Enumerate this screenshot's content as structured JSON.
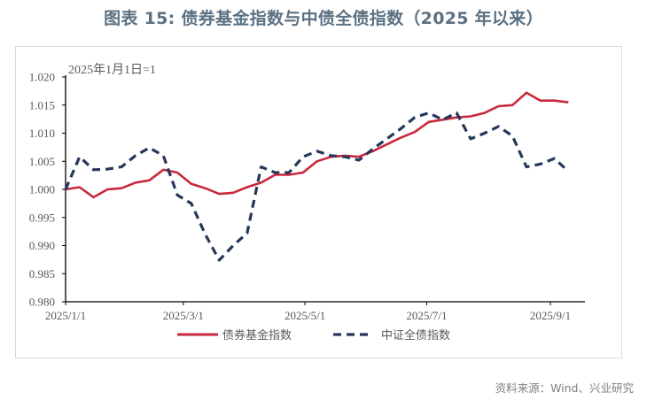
{
  "title": "图表 15: 债券基金指数与中债全债指数（2025 年以来）",
  "source": "资料来源：Wind、兴业研究",
  "chart_data": {
    "type": "line",
    "title": "图表 15: 债券基金指数与中债全债指数（2025 年以来）",
    "annotation": "2025年1月1日=1",
    "xlabel": "",
    "ylabel": "",
    "ylim": [
      0.98,
      1.02
    ],
    "yticks": [
      "1.020",
      "1.015",
      "1.010",
      "1.005",
      "1.000",
      "0.995",
      "0.990",
      "0.985",
      "0.980"
    ],
    "xticks": [
      "2025/1/1",
      "2025/3/1",
      "2025/5/1",
      "2025/7/1",
      "2025/9/1"
    ],
    "grid": false,
    "legend_position": "bottom",
    "colors": {
      "bond_fund": "#c8283e",
      "chinabond": "#25385a"
    },
    "x": [
      "2025/1/1",
      "2025/1/8",
      "2025/1/15",
      "2025/1/22",
      "2025/1/29",
      "2025/2/5",
      "2025/2/12",
      "2025/2/19",
      "2025/2/26",
      "2025/3/5",
      "2025/3/12",
      "2025/3/19",
      "2025/3/26",
      "2025/4/2",
      "2025/4/9",
      "2025/4/16",
      "2025/4/23",
      "2025/4/30",
      "2025/5/7",
      "2025/5/14",
      "2025/5/21",
      "2025/5/28",
      "2025/6/4",
      "2025/6/11",
      "2025/6/18",
      "2025/6/25",
      "2025/7/2",
      "2025/7/9",
      "2025/7/16",
      "2025/7/23",
      "2025/7/30",
      "2025/8/6",
      "2025/8/13",
      "2025/8/20",
      "2025/8/27",
      "2025/9/3",
      "2025/9/10"
    ],
    "series": [
      {
        "name": "债券基金指数",
        "style": "solid",
        "values": [
          1.0,
          1.0004,
          0.9986,
          1.0,
          1.0002,
          1.0012,
          1.0016,
          1.0035,
          1.003,
          1.001,
          1.0002,
          0.9992,
          0.9994,
          1.0004,
          1.0012,
          1.0026,
          1.0026,
          1.003,
          1.005,
          1.0058,
          1.006,
          1.0058,
          1.0068,
          1.008,
          1.0092,
          1.0102,
          1.012,
          1.0124,
          1.0128,
          1.013,
          1.0136,
          1.0148,
          1.015,
          1.0172,
          1.0158,
          1.0158,
          1.0155
        ]
      },
      {
        "name": "中证全债指数",
        "style": "dashed",
        "values": [
          1.0,
          1.0058,
          1.0035,
          1.0036,
          1.004,
          1.006,
          1.0074,
          1.006,
          0.999,
          0.9975,
          0.992,
          0.9874,
          0.99,
          0.9922,
          1.004,
          1.003,
          1.003,
          1.0058,
          1.0068,
          1.006,
          1.0058,
          1.0052,
          1.0072,
          1.009,
          1.0108,
          1.0128,
          1.0136,
          1.0124,
          1.0136,
          1.009,
          1.01,
          1.0112,
          1.0095,
          1.004,
          1.0045,
          1.0055,
          1.0032
        ]
      }
    ]
  },
  "legend": {
    "series_a": "债券基金指数",
    "series_b": "中证全债指数"
  }
}
